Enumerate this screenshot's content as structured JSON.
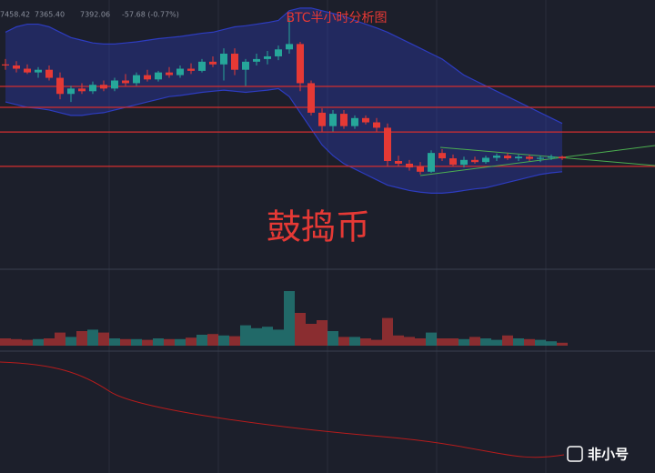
{
  "header": {
    "values": [
      "7458.42",
      "7365.40",
      "7392.06",
      "-57.68 (-0.77%)"
    ]
  },
  "chart_data": {
    "type": "candlestick",
    "title": "BTC半小时分析图",
    "watermark": "鼓捣币",
    "up_color": "#26a69a",
    "down_color": "#e53935",
    "band_color": "#2d3cc0",
    "hline_color": "#d32f2f",
    "ylim": [
      7250,
      7750
    ],
    "ohlc": [
      [
        7630,
        7640,
        7620,
        7628
      ],
      [
        7628,
        7636,
        7615,
        7622
      ],
      [
        7622,
        7630,
        7612,
        7615
      ],
      [
        7615,
        7625,
        7605,
        7620
      ],
      [
        7620,
        7628,
        7600,
        7605
      ],
      [
        7605,
        7615,
        7565,
        7575
      ],
      [
        7575,
        7590,
        7560,
        7585
      ],
      [
        7585,
        7595,
        7575,
        7580
      ],
      [
        7580,
        7598,
        7575,
        7592
      ],
      [
        7592,
        7600,
        7580,
        7585
      ],
      [
        7585,
        7605,
        7580,
        7600
      ],
      [
        7600,
        7612,
        7590,
        7595
      ],
      [
        7595,
        7615,
        7590,
        7610
      ],
      [
        7610,
        7620,
        7598,
        7602
      ],
      [
        7602,
        7618,
        7598,
        7615
      ],
      [
        7615,
        7625,
        7605,
        7610
      ],
      [
        7610,
        7628,
        7605,
        7622
      ],
      [
        7622,
        7632,
        7612,
        7618
      ],
      [
        7618,
        7640,
        7615,
        7635
      ],
      [
        7635,
        7645,
        7625,
        7630
      ],
      [
        7630,
        7660,
        7600,
        7650
      ],
      [
        7650,
        7660,
        7610,
        7620
      ],
      [
        7620,
        7640,
        7590,
        7635
      ],
      [
        7635,
        7650,
        7628,
        7640
      ],
      [
        7640,
        7655,
        7630,
        7645
      ],
      [
        7645,
        7665,
        7638,
        7658
      ],
      [
        7658,
        7716,
        7650,
        7668
      ],
      [
        7668,
        7672,
        7580,
        7595
      ],
      [
        7595,
        7600,
        7535,
        7540
      ],
      [
        7540,
        7548,
        7505,
        7515
      ],
      [
        7515,
        7545,
        7505,
        7538
      ],
      [
        7538,
        7545,
        7510,
        7515
      ],
      [
        7515,
        7535,
        7510,
        7530
      ],
      [
        7530,
        7535,
        7518,
        7522
      ],
      [
        7522,
        7530,
        7505,
        7512
      ],
      [
        7512,
        7520,
        7440,
        7450
      ],
      [
        7450,
        7460,
        7440,
        7445
      ],
      [
        7445,
        7452,
        7432,
        7438
      ],
      [
        7440,
        7448,
        7425,
        7430
      ],
      [
        7430,
        7470,
        7428,
        7465
      ],
      [
        7465,
        7472,
        7450,
        7455
      ],
      [
        7455,
        7462,
        7440,
        7443
      ],
      [
        7443,
        7458,
        7438,
        7452
      ],
      [
        7452,
        7458,
        7445,
        7448
      ],
      [
        7448,
        7460,
        7445,
        7456
      ],
      [
        7456,
        7464,
        7450,
        7460
      ],
      [
        7460,
        7465,
        7452,
        7455
      ],
      [
        7455,
        7462,
        7450,
        7458
      ],
      [
        7458,
        7462,
        7450,
        7454
      ],
      [
        7454,
        7460,
        7448,
        7456
      ],
      [
        7456,
        7462,
        7452,
        7458
      ],
      [
        7458,
        7460,
        7452,
        7455
      ]
    ],
    "bands": {
      "upper": [
        7690,
        7700,
        7705,
        7705,
        7700,
        7690,
        7680,
        7675,
        7670,
        7668,
        7668,
        7670,
        7672,
        7675,
        7678,
        7680,
        7682,
        7685,
        7688,
        7690,
        7695,
        7700,
        7702,
        7705,
        7708,
        7712,
        7730,
        7735,
        7735,
        7730,
        7725,
        7720,
        7712,
        7705,
        7698,
        7690,
        7680,
        7670,
        7660,
        7650,
        7640,
        7625,
        7610,
        7600,
        7590,
        7580,
        7570,
        7560,
        7550,
        7540,
        7530,
        7520
      ],
      "lower": [
        7560,
        7555,
        7550,
        7548,
        7545,
        7540,
        7535,
        7535,
        7538,
        7540,
        7545,
        7550,
        7555,
        7560,
        7565,
        7570,
        7572,
        7575,
        7578,
        7580,
        7582,
        7580,
        7578,
        7580,
        7582,
        7585,
        7570,
        7540,
        7510,
        7480,
        7460,
        7445,
        7435,
        7425,
        7415,
        7405,
        7400,
        7395,
        7392,
        7390,
        7390,
        7392,
        7395,
        7398,
        7400,
        7405,
        7410,
        7415,
        7420,
        7425,
        7428,
        7430
      ]
    },
    "hlines": [
      7589,
      7550,
      7504,
      7440
    ],
    "volume": {
      "ylim": [
        0,
        100
      ],
      "values": [
        10,
        9,
        8,
        9,
        10,
        18,
        12,
        20,
        22,
        18,
        10,
        9,
        9,
        8,
        10,
        9,
        9,
        11,
        15,
        16,
        14,
        13,
        28,
        24,
        26,
        22,
        75,
        45,
        30,
        35,
        20,
        12,
        12,
        10,
        8,
        38,
        14,
        12,
        10,
        18,
        10,
        10,
        9,
        12,
        10,
        8,
        14,
        10,
        9,
        8,
        6,
        4
      ]
    }
  },
  "logo": {
    "text": "非小号"
  }
}
